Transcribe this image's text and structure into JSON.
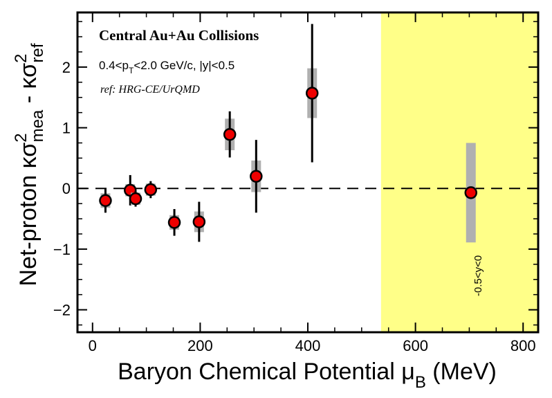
{
  "chart_data": {
    "type": "scatter",
    "title": "",
    "xlabel": "Baryon Chemical Potential",
    "xlabel_symbol": "μ",
    "xlabel_sub": "B",
    "xlabel_unit": "(MeV)",
    "ylabel": {
      "prefix": "Net-proton κσ",
      "sup1": "2",
      "sub1": "mea",
      "mid": " - κσ",
      "sup2": "2",
      "sub2": "ref"
    },
    "xlim": [
      -28,
      828
    ],
    "ylim": [
      -2.37,
      2.9
    ],
    "xticks": [
      0,
      200,
      400,
      600,
      800
    ],
    "yticks": [
      -2,
      -1,
      0,
      1,
      2
    ],
    "xtick_labels": [
      "0",
      "200",
      "400",
      "600",
      "800"
    ],
    "ytick_labels": [
      "−2",
      "−1",
      "0",
      "1",
      "2"
    ],
    "grid": false,
    "reference_line": 0,
    "highlight_region": {
      "x_from": 536,
      "x_to": 828,
      "color": "#ffff88"
    },
    "annotations": {
      "title": "Central Au+Au Collisions",
      "kinematics": {
        "a": "0.4<p",
        "sub": "T",
        "b": "<2.0 GeV/c, |y|<0.5"
      },
      "ref": "ref: HRG-CE/UrQMD",
      "rotated": "-0.5<y<0"
    },
    "series": [
      {
        "points": [
          {
            "x": 24,
            "y": -0.2,
            "stat": 0.2,
            "sys": 0.12
          },
          {
            "x": 70,
            "y": -0.03,
            "stat": 0.25,
            "sys": 0.1
          },
          {
            "x": 80,
            "y": -0.17,
            "stat": 0.13,
            "sys": 0.1
          },
          {
            "x": 108,
            "y": -0.02,
            "stat": 0.14,
            "sys": 0.1
          },
          {
            "x": 152,
            "y": -0.56,
            "stat": 0.22,
            "sys": 0.12
          },
          {
            "x": 198,
            "y": -0.55,
            "stat": 0.33,
            "sys": 0.17
          },
          {
            "x": 255,
            "y": 0.89,
            "stat": 0.38,
            "sys": 0.26
          },
          {
            "x": 304,
            "y": 0.2,
            "stat": 0.6,
            "sys": 0.26
          },
          {
            "x": 408,
            "y": 1.57,
            "stat": 1.14,
            "sys": 0.41
          },
          {
            "x": 703,
            "y": -0.07,
            "stat": 0,
            "sys": 0.82
          }
        ]
      }
    ],
    "colors": {
      "marker_fill": "#ee0000",
      "marker_edge": "#000000",
      "sys_band": "#b0b0b0",
      "highlight": "#ffff88"
    }
  }
}
